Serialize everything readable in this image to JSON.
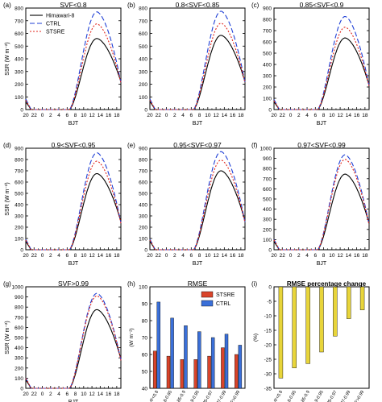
{
  "colors": {
    "himawari": "#000000",
    "ctrl": "#1f3fd6",
    "stsre": "#e0241b",
    "bar_stsre": "#d9442a",
    "bar_ctrl": "#3a6fd8",
    "bar_pct": "#e8d53a"
  },
  "x_ticks": [
    "20",
    "22",
    "0",
    "2",
    "4",
    "6",
    "8",
    "10",
    "12",
    "14",
    "16",
    "18"
  ],
  "cats": [
    "SVF<0.8",
    "0.8-0.85",
    "0.85-0.9",
    "0.9-0.95",
    "0.95-0.97",
    "0.97-0.99",
    "SVF>0.99"
  ],
  "chart_data": [
    {
      "type": "line",
      "panel": "(a)",
      "title": "SVF<0.8",
      "xlabel": "BJT",
      "ylabel": "SSR (W m⁻²)",
      "ylim": [
        0,
        800
      ],
      "yticks": [
        "0",
        "100",
        "200",
        "300",
        "400",
        "500",
        "600",
        "700",
        "800"
      ],
      "legend": "top-left",
      "series": [
        {
          "name": "Himawari-8",
          "style": "solid",
          "peak": 560,
          "end": 220
        },
        {
          "name": "CTRL",
          "style": "dash",
          "peak": 770,
          "end": 215
        },
        {
          "name": "STSRE",
          "style": "dot",
          "peak": 675,
          "end": 210
        }
      ]
    },
    {
      "type": "line",
      "panel": "(b)",
      "title": "0.8<SVF<0.85",
      "xlabel": "BJT",
      "ylim": [
        0,
        800
      ],
      "yticks": [
        "0",
        "100",
        "200",
        "300",
        "400",
        "500",
        "600",
        "700",
        "800"
      ],
      "series": [
        {
          "name": "Himawari-8",
          "peak": 585,
          "end": 220
        },
        {
          "name": "CTRL",
          "peak": 775,
          "end": 215
        },
        {
          "name": "STSRE",
          "peak": 680,
          "end": 210
        }
      ]
    },
    {
      "type": "line",
      "panel": "(c)",
      "title": "0.85<SVF<0.9",
      "xlabel": "BJT",
      "ylim": [
        0,
        900
      ],
      "yticks": [
        "0",
        "100",
        "200",
        "300",
        "400",
        "500",
        "600",
        "700",
        "800",
        "900"
      ],
      "series": [
        {
          "name": "Himawari-8",
          "peak": 635,
          "end": 215
        },
        {
          "name": "CTRL",
          "peak": 825,
          "end": 210
        },
        {
          "name": "STSRE",
          "peak": 730,
          "end": 205
        }
      ]
    },
    {
      "type": "line",
      "panel": "(d)",
      "title": "0.9<SVF<0.95",
      "xlabel": "BJT",
      "ylabel": "SSR (W m⁻²)",
      "ylim": [
        0,
        900
      ],
      "yticks": [
        "0",
        "100",
        "200",
        "300",
        "400",
        "500",
        "600",
        "700",
        "800",
        "900"
      ],
      "series": [
        {
          "name": "Himawari-8",
          "peak": 675,
          "end": 250
        },
        {
          "name": "CTRL",
          "peak": 860,
          "end": 240
        },
        {
          "name": "STSRE",
          "peak": 785,
          "end": 235
        }
      ]
    },
    {
      "type": "line",
      "panel": "(e)",
      "title": "0.95<SVF<0.97",
      "xlabel": "BJT",
      "ylim": [
        0,
        900
      ],
      "yticks": [
        "0",
        "100",
        "200",
        "300",
        "400",
        "500",
        "600",
        "700",
        "800",
        "900"
      ],
      "series": [
        {
          "name": "Himawari-8",
          "peak": 700,
          "end": 255
        },
        {
          "name": "CTRL",
          "peak": 870,
          "end": 245
        },
        {
          "name": "STSRE",
          "peak": 795,
          "end": 240
        }
      ]
    },
    {
      "type": "line",
      "panel": "(f)",
      "title": "0.97<SVF<0.99",
      "xlabel": "BJT",
      "ylim": [
        0,
        1000
      ],
      "yticks": [
        "0",
        "100",
        "200",
        "300",
        "400",
        "500",
        "600",
        "700",
        "800",
        "900",
        "1000"
      ],
      "series": [
        {
          "name": "Himawari-8",
          "peak": 745,
          "end": 260
        },
        {
          "name": "CTRL",
          "peak": 935,
          "end": 250
        },
        {
          "name": "STSRE",
          "peak": 890,
          "end": 245
        }
      ]
    },
    {
      "type": "line",
      "panel": "(g)",
      "title": "SVF>0.99",
      "xlabel": "BJT",
      "ylabel": "SSR (W m⁻²)",
      "ylim": [
        0,
        1000
      ],
      "yticks": [
        "0",
        "100",
        "200",
        "300",
        "400",
        "500",
        "600",
        "700",
        "800",
        "900",
        "1000"
      ],
      "series": [
        {
          "name": "Himawari-8",
          "peak": 775,
          "end": 290
        },
        {
          "name": "CTRL",
          "peak": 935,
          "end": 280
        },
        {
          "name": "STSRE",
          "peak": 910,
          "end": 275
        }
      ]
    },
    {
      "type": "bar",
      "panel": "(h)",
      "title": "RMSE",
      "ylabel": "(W m⁻²)",
      "ylim": [
        40,
        100
      ],
      "yticks": [
        "40",
        "50",
        "60",
        "70",
        "80",
        "90",
        "100"
      ],
      "legend": "top-right",
      "series": [
        {
          "name": "STSRE",
          "values": [
            62,
            59,
            57,
            57,
            59,
            64,
            60
          ]
        },
        {
          "name": "CTRL",
          "values": [
            91,
            81.5,
            77,
            73.5,
            70,
            72,
            65.5
          ]
        }
      ]
    },
    {
      "type": "bar",
      "panel": "(i)",
      "title": "RMSE percentage change",
      "ylabel": "(%)",
      "ylim": [
        -35,
        0
      ],
      "yticks": [
        "-35",
        "-30",
        "-25",
        "-20",
        "-15",
        "-10",
        "-5",
        "0"
      ],
      "values": [
        -31.5,
        -28,
        -26.5,
        -22.5,
        -17,
        -11,
        -8
      ]
    }
  ]
}
